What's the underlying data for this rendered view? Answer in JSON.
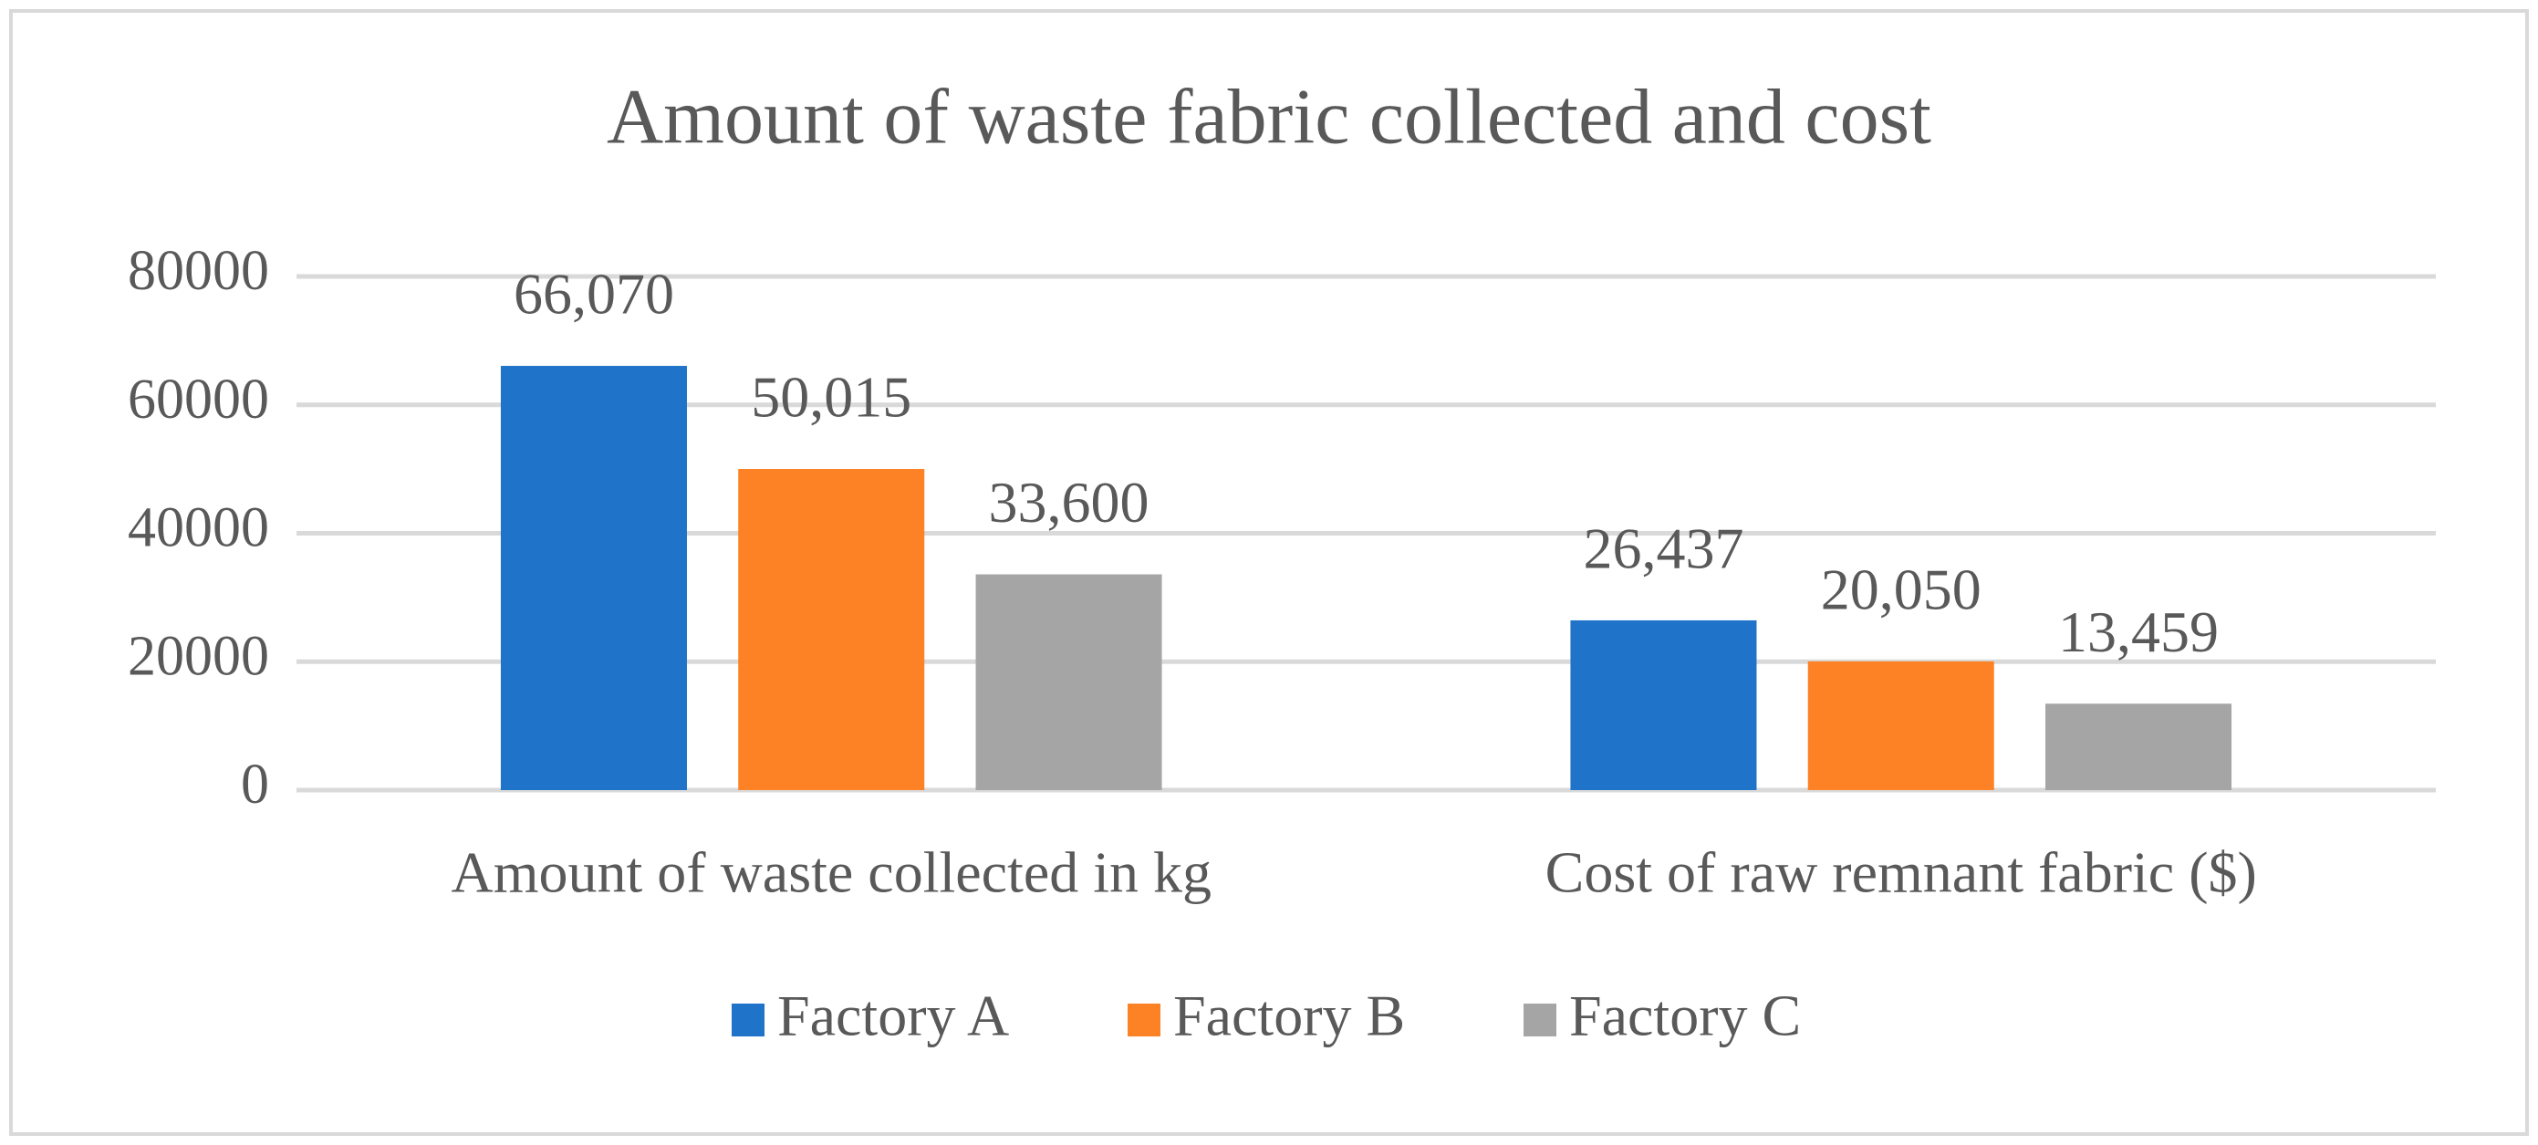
{
  "chart_data": {
    "type": "bar",
    "title": "Amount of waste fabric collected and cost",
    "categories": [
      "Amount of waste collected in kg",
      "Cost of raw remnant fabric ($)"
    ],
    "series": [
      {
        "name": "Factory A",
        "color": "#1f73c9",
        "values": [
          66070,
          26437
        ],
        "value_labels": [
          "66,070",
          "26,437"
        ]
      },
      {
        "name": "Factory B",
        "color": "#fd8125",
        "values": [
          50015,
          20050
        ],
        "value_labels": [
          "50,015",
          "20,050"
        ]
      },
      {
        "name": "Factory C",
        "color": "#a5a5a5",
        "values": [
          33600,
          13459
        ],
        "value_labels": [
          "33,600",
          "13,459"
        ]
      }
    ],
    "ylim": [
      0,
      80000
    ],
    "yticks": [
      0,
      20000,
      40000,
      60000,
      80000
    ],
    "grid": true,
    "legend": "bottom"
  }
}
